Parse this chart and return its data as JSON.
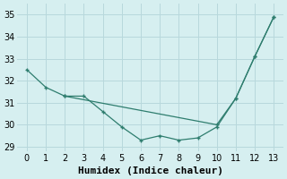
{
  "line1_x": [
    0,
    1,
    2,
    3,
    4,
    5,
    6,
    7,
    8,
    9,
    10,
    11,
    12,
    13
  ],
  "line1_y": [
    32.5,
    31.7,
    31.3,
    31.3,
    30.6,
    29.9,
    29.3,
    29.5,
    29.3,
    29.4,
    29.9,
    31.2,
    33.1,
    34.9
  ],
  "line2_x": [
    2,
    10,
    11,
    12,
    13
  ],
  "line2_y": [
    31.3,
    30.0,
    31.2,
    33.1,
    34.9
  ],
  "line_color": "#2e7d6e",
  "bg_color": "#d6eff0",
  "grid_color": "#b8d8dc",
  "xlabel": "Humidex (Indice chaleur)",
  "ylim": [
    28.8,
    35.5
  ],
  "xlim": [
    -0.5,
    13.5
  ],
  "yticks": [
    29,
    30,
    31,
    32,
    33,
    34,
    35
  ],
  "xticks": [
    0,
    1,
    2,
    3,
    4,
    5,
    6,
    7,
    8,
    9,
    10,
    11,
    12,
    13
  ],
  "font_size": 7,
  "label_font_size": 8
}
